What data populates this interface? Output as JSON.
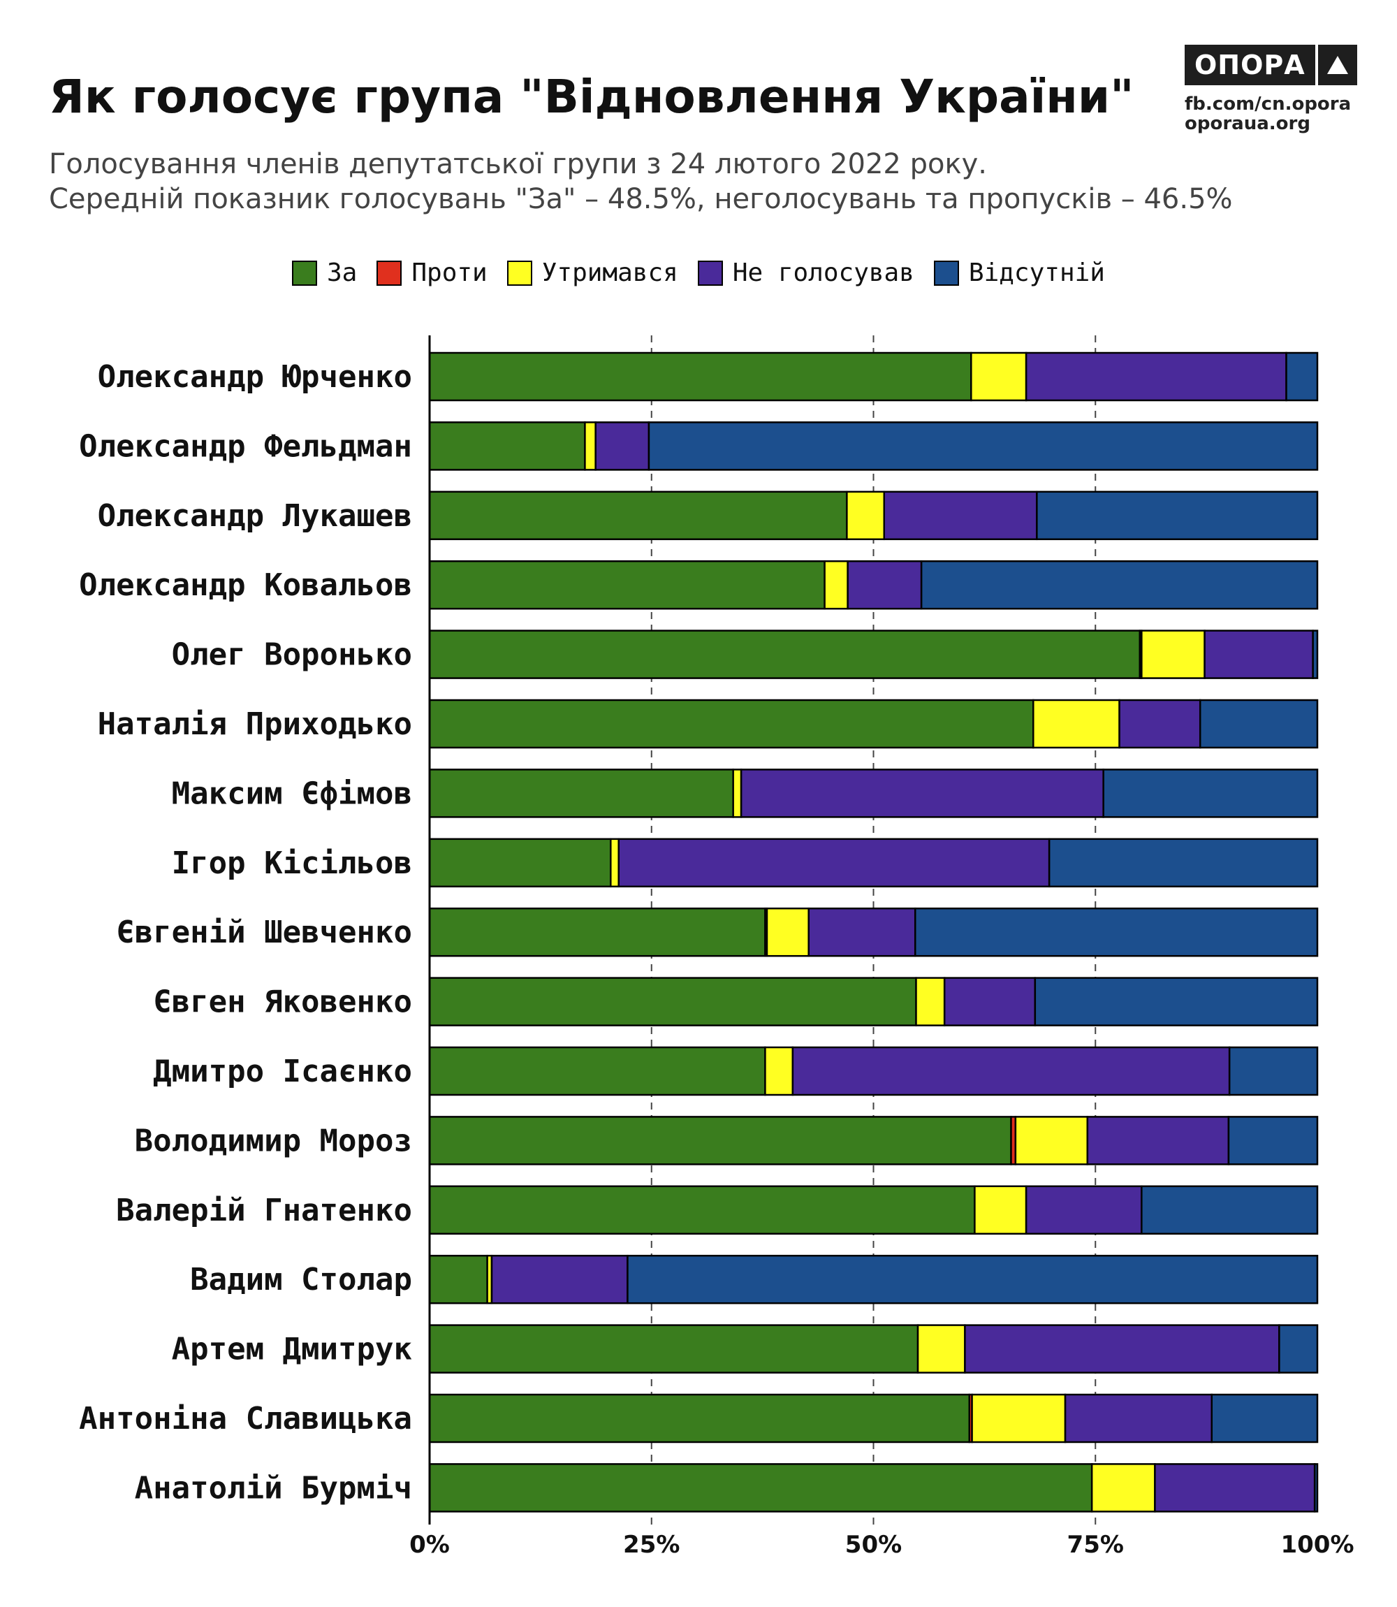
{
  "header": {
    "title": "Як голосує група \"Відновлення України\"",
    "subtitle_line1": "Голосування членів депутатської групи з 24 лютого 2022 року.",
    "subtitle_line2": "Середній показник голосувань \"За\" – 48.5%, неголосувань та пропусків – 46.5%"
  },
  "brand": {
    "name": "ОПОРА",
    "line1": "fb.com/cn.opora",
    "line2": "oporaua.org"
  },
  "chart_data": {
    "type": "bar",
    "orientation": "horizontal",
    "stacked": true,
    "normalized": true,
    "title": "Як голосує група \"Відновлення України\"",
    "xlabel": "",
    "ylabel": "",
    "xlim": [
      0,
      100
    ],
    "x_ticks": [
      "0%",
      "25%",
      "50%",
      "75%",
      "100%"
    ],
    "grid": "vertical dashed at 25, 50, 75",
    "legend_position": "top-center",
    "categories": [
      "Олександр Юрченко",
      "Олександр Фельдман",
      "Олександр Лукашев",
      "Олександр Ковальов",
      "Олег Воронько",
      "Наталія Приходько",
      "Максим Єфімов",
      "Ігор Кісільов",
      "Євгеній Шевченко",
      "Євген Яковенко",
      "Дмитро Ісаєнко",
      "Володимир Мороз",
      "Валерій Гнатенко",
      "Вадим Столар",
      "Артем Дмитрук",
      "Антоніна Славицька",
      "Анатолій Бурміч"
    ],
    "series": [
      {
        "name": "За",
        "color": "#3a7d1e",
        "values": [
          61.0,
          17.5,
          47.0,
          44.5,
          80.0,
          68.0,
          34.2,
          20.4,
          37.8,
          54.8,
          37.8,
          65.5,
          61.4,
          6.5,
          55.0,
          60.8,
          74.6
        ]
      },
      {
        "name": "Проти",
        "color": "#e0301e",
        "values": [
          0,
          0,
          0,
          0,
          0.2,
          0,
          0,
          0,
          0.2,
          0,
          0,
          0.5,
          0,
          0,
          0,
          0.3,
          0
        ]
      },
      {
        "name": "Утримався",
        "color": "#ffff22",
        "values": [
          6.2,
          1.2,
          4.2,
          2.6,
          7.1,
          9.7,
          0.9,
          0.9,
          4.7,
          3.2,
          3.1,
          8.1,
          5.8,
          0.5,
          5.3,
          10.5,
          7.1
        ]
      },
      {
        "name": "Не голосував",
        "color": "#4a2a9a",
        "values": [
          29.3,
          6.0,
          17.2,
          8.3,
          12.2,
          9.1,
          40.8,
          48.5,
          12.0,
          10.2,
          49.2,
          15.9,
          13.0,
          15.3,
          35.4,
          16.5,
          18.0
        ]
      },
      {
        "name": "Відсутній",
        "color": "#1c4f8e",
        "values": [
          3.5,
          75.3,
          31.6,
          44.6,
          0.5,
          13.2,
          24.1,
          30.2,
          45.3,
          31.8,
          9.9,
          10.0,
          19.8,
          77.7,
          4.3,
          11.9,
          0.3
        ]
      }
    ]
  }
}
